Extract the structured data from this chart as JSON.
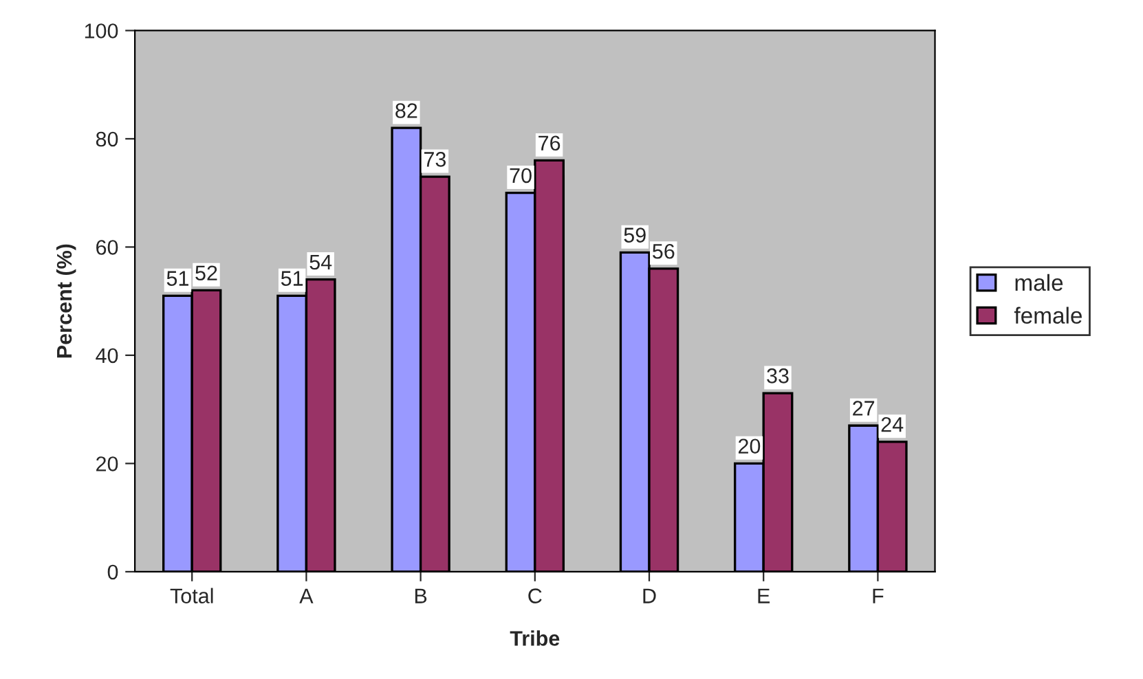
{
  "chart_data": {
    "type": "bar",
    "xlabel": "Tribe",
    "ylabel": "Percent (%)",
    "categories": [
      "Total",
      "A",
      "B",
      "C",
      "D",
      "E",
      "F"
    ],
    "series": [
      {
        "name": "male",
        "color": "#9999ff",
        "values": [
          51,
          51,
          82,
          70,
          59,
          20,
          27
        ]
      },
      {
        "name": "female",
        "color": "#993366",
        "values": [
          52,
          54,
          73,
          76,
          56,
          33,
          24
        ]
      }
    ],
    "ylim": [
      0,
      100
    ],
    "yticks": [
      0,
      20,
      40,
      60,
      80,
      100
    ],
    "data_labels": true,
    "grid": false,
    "legend": "right"
  }
}
